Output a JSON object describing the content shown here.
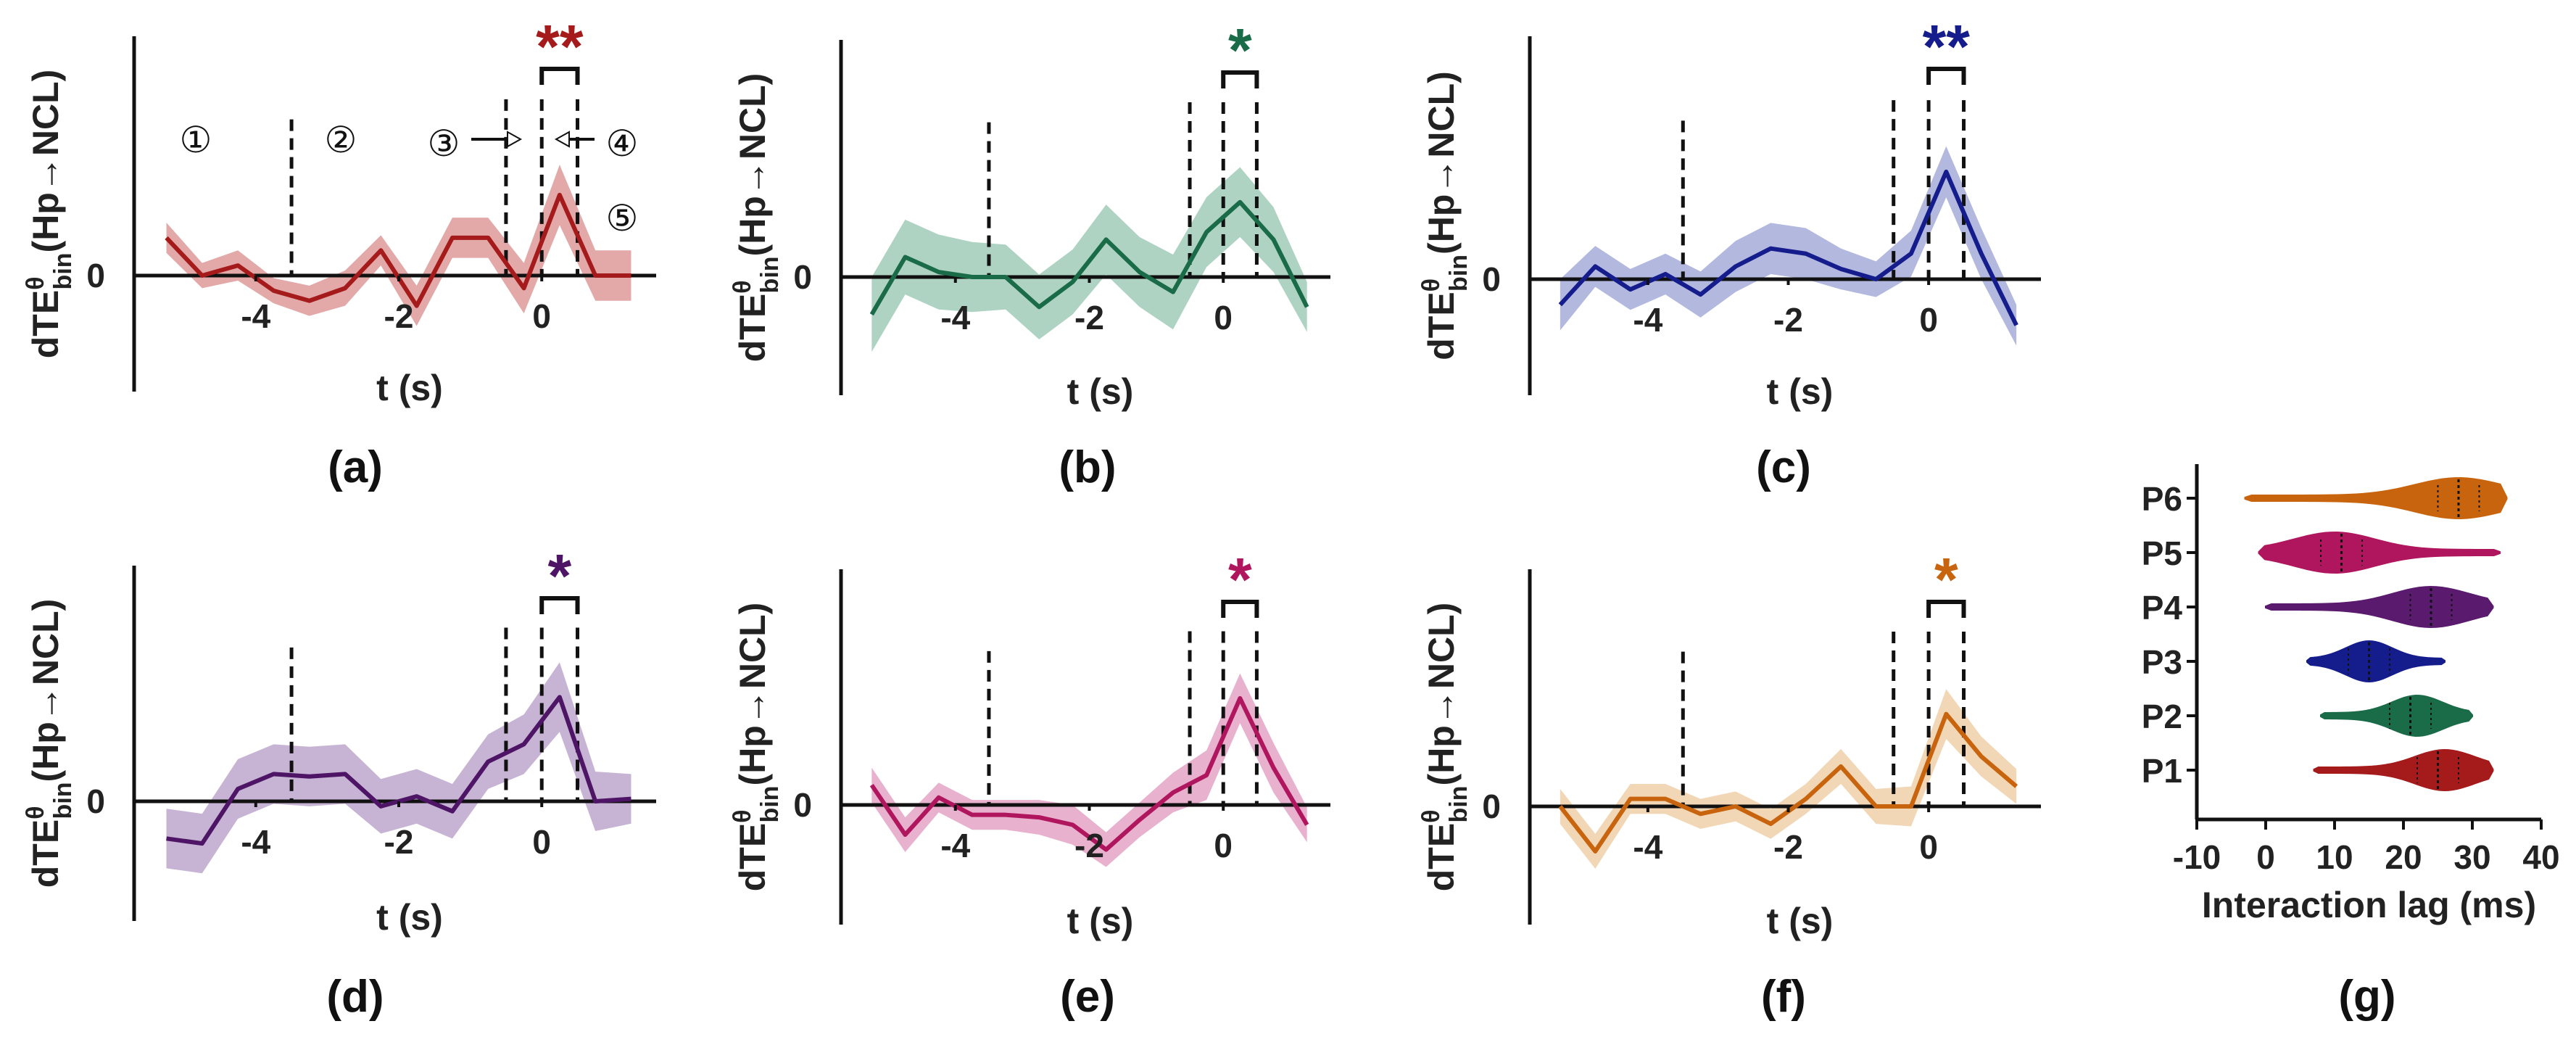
{
  "figure": {
    "y_label": "dTE",
    "y_label_sup": "θ",
    "y_label_sub": "bin",
    "y_label_tail": "(Hp→NCL)",
    "x_label": "t (s)",
    "x_ticks": [
      "-4",
      "-2",
      "0"
    ],
    "y_tick": "0",
    "circled_labels": [
      "①",
      "②",
      "③",
      "④",
      "⑤"
    ]
  },
  "chart_data": [
    {
      "type": "line",
      "panel": "(a)",
      "color": "#a51a1a",
      "band_color": "#d98c8c",
      "stars": "**",
      "xlim": [
        -5.6,
        1.6
      ],
      "ylim": [
        -0.5,
        0.95
      ],
      "x": [
        -5.25,
        -4.75,
        -4.25,
        -3.75,
        -3.25,
        -2.75,
        -2.25,
        -1.75,
        -1.25,
        -0.75,
        -0.25,
        0.25,
        0.75,
        1.25
      ],
      "y": [
        0.15,
        0.0,
        0.04,
        -0.06,
        -0.1,
        -0.05,
        0.1,
        -0.12,
        0.15,
        0.15,
        -0.05,
        0.32,
        0.0,
        0.0
      ],
      "band": [
        0.06,
        0.05,
        0.06,
        0.05,
        0.06,
        0.07,
        0.06,
        0.08,
        0.08,
        0.08,
        0.1,
        0.12,
        0.1,
        0.1
      ],
      "vlines": [
        -3.5,
        -0.5,
        0.0,
        0.5
      ],
      "bracket": [
        0.0,
        0.5
      ]
    },
    {
      "type": "line",
      "panel": "(b)",
      "color": "#1a6b48",
      "band_color": "#94c4ae",
      "stars": "*",
      "xlim": [
        -5.6,
        1.6
      ],
      "ylim": [
        -0.5,
        0.95
      ],
      "x": [
        -5.25,
        -4.75,
        -4.25,
        -3.75,
        -3.25,
        -2.75,
        -2.25,
        -1.75,
        -1.25,
        -0.75,
        -0.25,
        0.25,
        0.75,
        1.25
      ],
      "y": [
        -0.15,
        0.08,
        0.02,
        0.0,
        0.0,
        -0.12,
        -0.02,
        0.15,
        0.02,
        -0.06,
        0.18,
        0.3,
        0.15,
        -0.12
      ],
      "band": [
        0.15,
        0.15,
        0.15,
        0.14,
        0.13,
        0.13,
        0.13,
        0.14,
        0.14,
        0.15,
        0.14,
        0.14,
        0.13,
        0.1
      ],
      "vlines": [
        -3.5,
        -0.5,
        0.0,
        0.5
      ],
      "bracket": [
        0.0,
        0.5
      ]
    },
    {
      "type": "line",
      "panel": "(c)",
      "color": "#151c8c",
      "band_color": "#9aa0d4",
      "stars": "**",
      "xlim": [
        -5.6,
        1.6
      ],
      "ylim": [
        -0.5,
        0.95
      ],
      "x": [
        -5.25,
        -4.75,
        -4.25,
        -3.75,
        -3.25,
        -2.75,
        -2.25,
        -1.75,
        -1.25,
        -0.75,
        -0.25,
        0.25,
        0.75,
        1.25
      ],
      "y": [
        -0.1,
        0.05,
        -0.04,
        0.02,
        -0.06,
        0.05,
        0.12,
        0.1,
        0.04,
        0.0,
        0.1,
        0.42,
        0.1,
        -0.18
      ],
      "band": [
        0.1,
        0.08,
        0.08,
        0.08,
        0.09,
        0.1,
        0.1,
        0.1,
        0.08,
        0.07,
        0.09,
        0.1,
        0.1,
        0.08
      ],
      "vlines": [
        -3.5,
        -0.5,
        0.0,
        0.5
      ],
      "bracket": [
        0.0,
        0.5
      ]
    },
    {
      "type": "line",
      "panel": "(d)",
      "color": "#4e1566",
      "band_color": "#b49ac4",
      "stars": "*",
      "xlim": [
        -5.6,
        1.6
      ],
      "ylim": [
        -0.5,
        0.95
      ],
      "x": [
        -5.25,
        -4.75,
        -4.25,
        -3.75,
        -3.25,
        -2.75,
        -2.25,
        -1.75,
        -1.25,
        -0.75,
        -0.25,
        0.25,
        0.75,
        1.25
      ],
      "y": [
        -0.15,
        -0.17,
        0.05,
        0.11,
        0.1,
        0.11,
        -0.02,
        0.02,
        -0.04,
        0.16,
        0.23,
        0.42,
        0.0,
        0.01
      ],
      "band": [
        0.12,
        0.12,
        0.12,
        0.12,
        0.12,
        0.12,
        0.11,
        0.11,
        0.11,
        0.11,
        0.12,
        0.14,
        0.12,
        0.1
      ],
      "vlines": [
        -3.5,
        -0.5,
        0.0,
        0.5
      ],
      "bracket": [
        0.0,
        0.5
      ]
    },
    {
      "type": "line",
      "panel": "(e)",
      "color": "#b0165e",
      "band_color": "#e097bd",
      "stars": "*",
      "xlim": [
        -5.6,
        1.6
      ],
      "ylim": [
        -0.5,
        0.95
      ],
      "x": [
        -5.25,
        -4.75,
        -4.25,
        -3.75,
        -3.25,
        -2.75,
        -2.25,
        -1.75,
        -1.25,
        -0.75,
        -0.25,
        0.25,
        0.75,
        1.25
      ],
      "y": [
        0.08,
        -0.12,
        0.03,
        -0.04,
        -0.04,
        -0.05,
        -0.08,
        -0.18,
        -0.06,
        0.05,
        0.12,
        0.43,
        0.15,
        -0.08
      ],
      "band": [
        0.07,
        0.07,
        0.06,
        0.06,
        0.06,
        0.07,
        0.08,
        0.07,
        0.07,
        0.08,
        0.1,
        0.1,
        0.1,
        0.07
      ],
      "vlines": [
        -3.5,
        -0.5,
        0.0,
        0.5
      ],
      "bracket": [
        0.0,
        0.5
      ]
    },
    {
      "type": "line",
      "panel": "(f)",
      "color": "#c8640e",
      "band_color": "#eec99d",
      "stars": "*",
      "xlim": [
        -5.6,
        1.6
      ],
      "ylim": [
        -0.5,
        0.95
      ],
      "x": [
        -5.25,
        -4.75,
        -4.25,
        -3.75,
        -3.25,
        -2.75,
        -2.25,
        -1.75,
        -1.25,
        -0.75,
        -0.25,
        0.25,
        0.75,
        1.25
      ],
      "y": [
        0.0,
        -0.18,
        0.03,
        0.03,
        -0.03,
        0.0,
        -0.07,
        0.03,
        0.16,
        0.0,
        0.0,
        0.37,
        0.2,
        0.08
      ],
      "band": [
        0.07,
        0.07,
        0.06,
        0.06,
        0.06,
        0.06,
        0.06,
        0.06,
        0.07,
        0.07,
        0.08,
        0.1,
        0.08,
        0.07
      ],
      "vlines": [
        -3.5,
        -0.5,
        0.0,
        0.5
      ],
      "bracket": [
        0.0,
        0.5
      ]
    },
    {
      "type": "violin",
      "panel": "(g)",
      "xlabel": "Interaction lag (ms)",
      "xticks": [
        -10,
        0,
        10,
        20,
        30,
        40
      ],
      "xlim": [
        -10,
        40
      ],
      "categories": [
        "P1",
        "P2",
        "P3",
        "P4",
        "P5",
        "P6"
      ],
      "colors": [
        "#a51a1a",
        "#1a6b48",
        "#151c8c",
        "#5a1a6e",
        "#b0165e",
        "#c8640e"
      ],
      "ranges": [
        [
          7,
          33
        ],
        [
          8,
          30
        ],
        [
          6,
          26
        ],
        [
          0,
          33
        ],
        [
          -1,
          34
        ],
        [
          -3,
          35
        ]
      ],
      "modes": [
        26,
        22,
        15,
        24,
        10,
        28
      ],
      "medians": [
        25,
        21,
        15,
        24,
        11,
        28
      ]
    }
  ]
}
